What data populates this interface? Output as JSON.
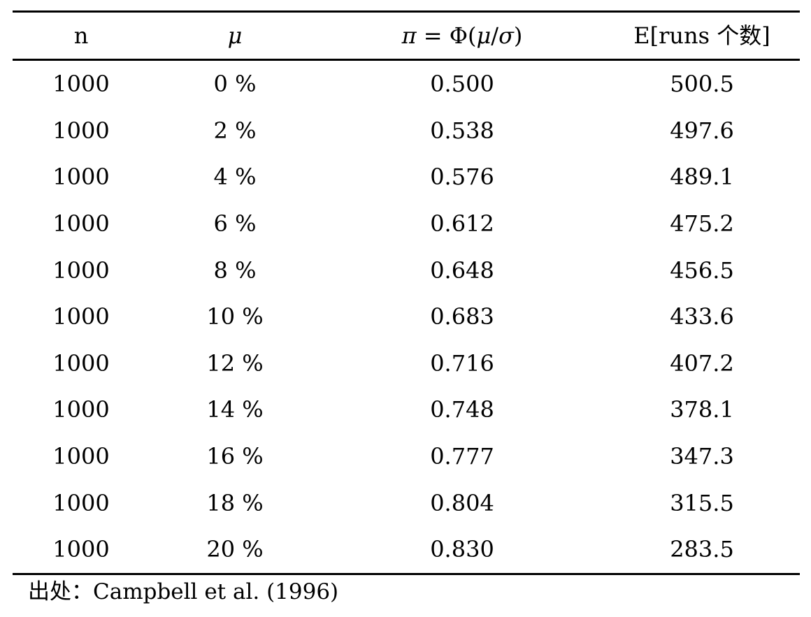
{
  "table": {
    "headers": {
      "n": "n",
      "mu": "μ",
      "pi_symbol": "π",
      "pi_rest": " = Φ(",
      "pi_mu": "μ",
      "pi_slash": "/",
      "pi_sigma": "σ",
      "pi_close": ")",
      "runs": "E[runs 个数]"
    },
    "rows": [
      {
        "n": "1000",
        "mu": "0 %",
        "pi": "0.500",
        "runs": "500.5"
      },
      {
        "n": "1000",
        "mu": "2 %",
        "pi": "0.538",
        "runs": "497.6"
      },
      {
        "n": "1000",
        "mu": "4 %",
        "pi": "0.576",
        "runs": "489.1"
      },
      {
        "n": "1000",
        "mu": "6 %",
        "pi": "0.612",
        "runs": "475.2"
      },
      {
        "n": "1000",
        "mu": "8 %",
        "pi": "0.648",
        "runs": "456.5"
      },
      {
        "n": "1000",
        "mu": "10 %",
        "pi": "0.683",
        "runs": "433.6"
      },
      {
        "n": "1000",
        "mu": "12 %",
        "pi": "0.716",
        "runs": "407.2"
      },
      {
        "n": "1000",
        "mu": "14 %",
        "pi": "0.748",
        "runs": "378.1"
      },
      {
        "n": "1000",
        "mu": "16 %",
        "pi": "0.777",
        "runs": "347.3"
      },
      {
        "n": "1000",
        "mu": "18 %",
        "pi": "0.804",
        "runs": "315.5"
      },
      {
        "n": "1000",
        "mu": "20 %",
        "pi": "0.830",
        "runs": "283.5"
      }
    ]
  },
  "source": "出处：Campbell et al. (1996)"
}
